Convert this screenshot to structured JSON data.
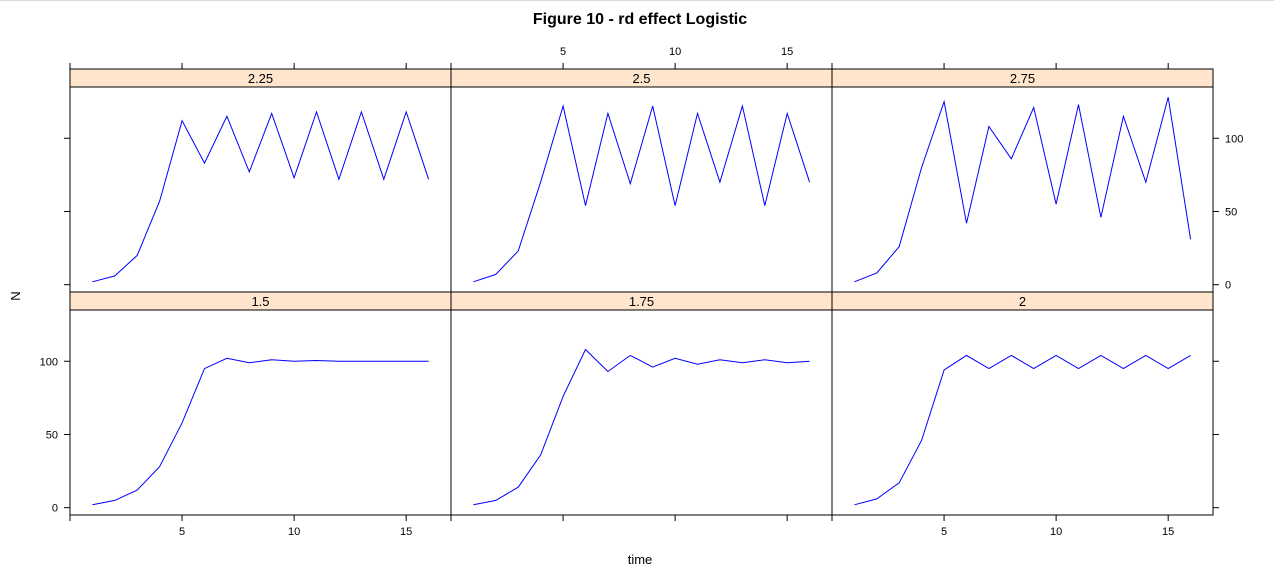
{
  "chart_data": {
    "type": "line",
    "title": "Figure 10 - rd effect Logistic",
    "xlabel": "time",
    "ylabel": "N",
    "xlim": [
      0,
      17
    ],
    "ylim": [
      -5,
      135
    ],
    "x_ticks": [
      5,
      10,
      15
    ],
    "y_ticks": [
      0,
      50,
      100
    ],
    "layout": "3 columns x 2 rows",
    "strip_color": "#ffe5cc",
    "line_color": "#0000ff",
    "x": [
      1,
      2,
      3,
      4,
      5,
      6,
      7,
      8,
      9,
      10,
      11,
      12,
      13,
      14,
      15,
      16
    ],
    "panels": [
      {
        "label": "1.5",
        "row": "bottom",
        "col": 0,
        "values": [
          2,
          5,
          12,
          28,
          58,
          95,
          102,
          99,
          101,
          100,
          100.5,
          100,
          100,
          100,
          100,
          100
        ]
      },
      {
        "label": "1.75",
        "row": "bottom",
        "col": 1,
        "values": [
          2,
          5,
          14,
          36,
          76,
          108,
          93,
          104,
          96,
          102,
          98,
          101,
          99,
          101,
          99,
          100
        ]
      },
      {
        "label": "2",
        "row": "bottom",
        "col": 2,
        "values": [
          2,
          6,
          17,
          46,
          94,
          104,
          95,
          104,
          95,
          104,
          95,
          104,
          95,
          104,
          95,
          104
        ]
      },
      {
        "label": "2.25",
        "row": "top",
        "col": 0,
        "values": [
          2,
          6,
          20,
          57,
          112,
          83,
          115,
          77,
          117,
          73,
          118,
          72,
          118,
          72,
          118,
          72
        ]
      },
      {
        "label": "2.5",
        "row": "top",
        "col": 1,
        "values": [
          2,
          7,
          23,
          70,
          122,
          54,
          117,
          69,
          122,
          54,
          117,
          70,
          122,
          54,
          117,
          70
        ]
      },
      {
        "label": "2.75",
        "row": "top",
        "col": 2,
        "values": [
          2,
          8,
          26,
          80,
          125,
          42,
          108,
          86,
          121,
          55,
          123,
          46,
          115,
          70,
          128,
          31
        ]
      }
    ]
  }
}
